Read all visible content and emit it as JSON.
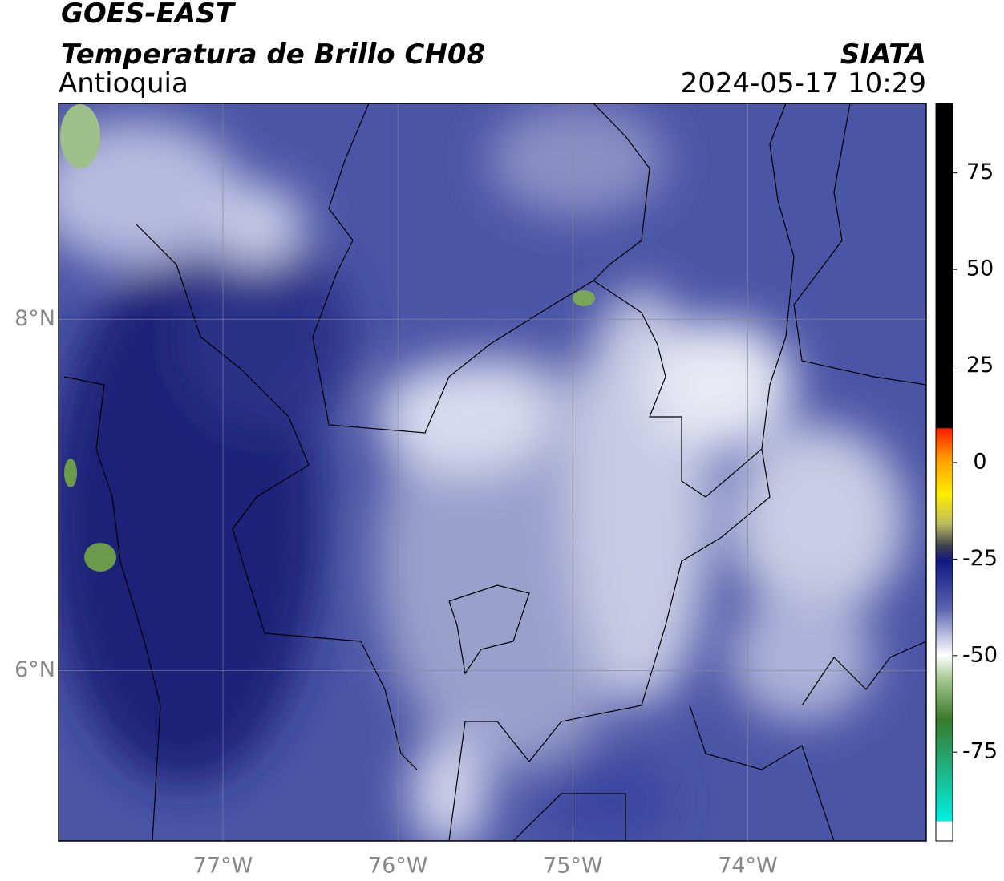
{
  "header": {
    "title": "GOES-EAST",
    "subtitle": "Temperatura de Brillo CH08",
    "region": "Antioquia",
    "source": "SIATA",
    "timestamp": "2024-05-17 10:29"
  },
  "map": {
    "xlim": [
      -77.94,
      -72.98
    ],
    "ylim": [
      5.03,
      9.23
    ],
    "xticks": [
      {
        "value": -77,
        "label": "77°W"
      },
      {
        "value": -76,
        "label": "76°W"
      },
      {
        "value": -75,
        "label": "75°W"
      },
      {
        "value": -74,
        "label": "74°W"
      }
    ],
    "yticks": [
      {
        "value": 6,
        "label": "6°N"
      },
      {
        "value": 8,
        "label": "8°N"
      }
    ],
    "grid": true
  },
  "colorbar": {
    "lim": [
      -98,
      93
    ],
    "ticks": [
      -75,
      -50,
      -25,
      0,
      25,
      50,
      75
    ]
  }
}
